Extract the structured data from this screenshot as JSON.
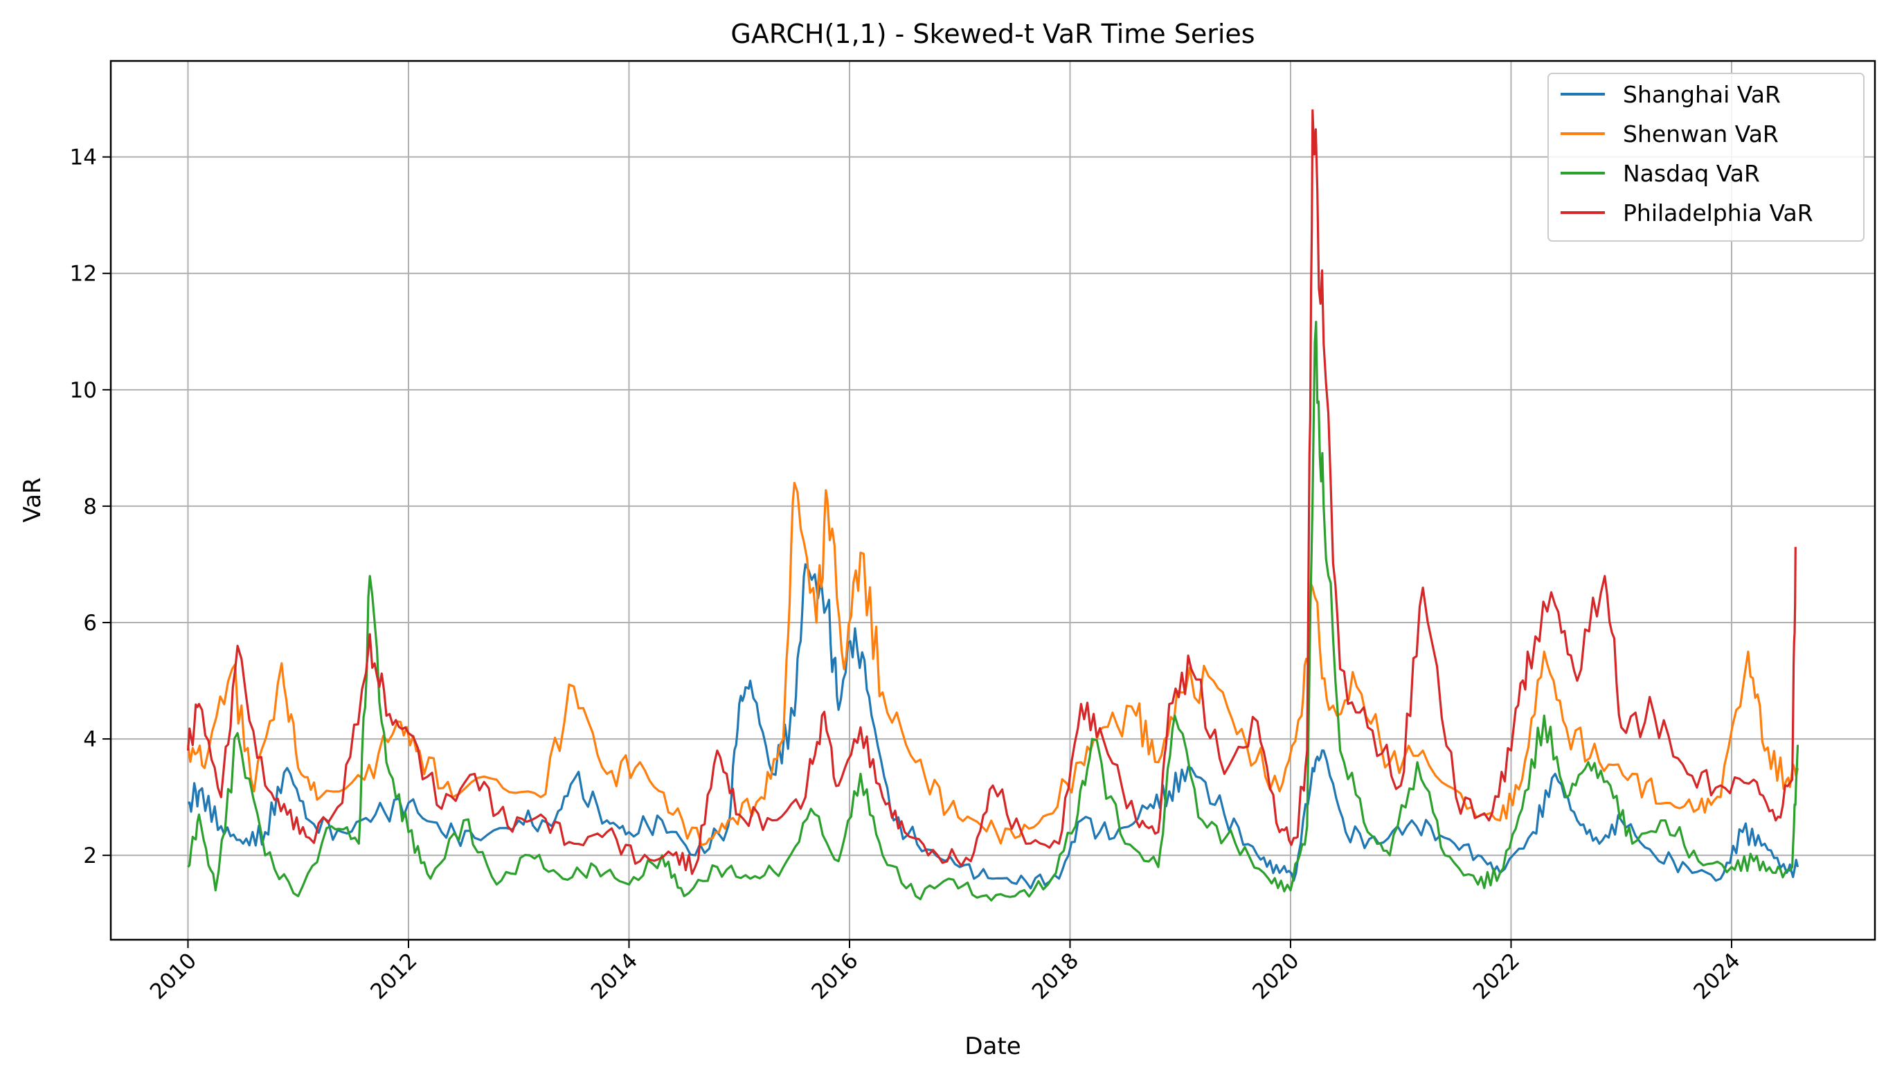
{
  "chart_data": {
    "type": "line",
    "title": "GARCH(1,1) - Skewed-t VaR Time Series",
    "xlabel": "Date",
    "ylabel": "VaR",
    "xlim": [
      2009.3,
      2025.3
    ],
    "ylim": [
      0.55,
      15.65
    ],
    "x_ticks": [
      2010,
      2012,
      2014,
      2016,
      2018,
      2020,
      2022,
      2024
    ],
    "y_ticks": [
      2,
      4,
      6,
      8,
      10,
      12,
      14
    ],
    "grid": true,
    "legend_position": "top-right",
    "series": [
      {
        "name": "Shanghai VaR",
        "color": "#1f77b4",
        "points": [
          [
            2010.0,
            2.9
          ],
          [
            2010.1,
            3.1
          ],
          [
            2010.3,
            2.5
          ],
          [
            2010.5,
            2.2
          ],
          [
            2010.7,
            2.4
          ],
          [
            2010.9,
            3.5
          ],
          [
            2011.1,
            2.6
          ],
          [
            2011.4,
            2.4
          ],
          [
            2011.7,
            2.7
          ],
          [
            2012.0,
            2.9
          ],
          [
            2012.3,
            2.4
          ],
          [
            2012.6,
            2.3
          ],
          [
            2013.0,
            2.6
          ],
          [
            2013.3,
            2.5
          ],
          [
            2013.5,
            3.3
          ],
          [
            2013.8,
            2.6
          ],
          [
            2014.0,
            2.4
          ],
          [
            2014.3,
            2.6
          ],
          [
            2014.6,
            2.0
          ],
          [
            2014.9,
            2.5
          ],
          [
            2015.0,
            4.6
          ],
          [
            2015.1,
            5.0
          ],
          [
            2015.3,
            3.4
          ],
          [
            2015.5,
            4.4
          ],
          [
            2015.6,
            7.0
          ],
          [
            2015.8,
            6.3
          ],
          [
            2015.9,
            4.5
          ],
          [
            2016.05,
            5.9
          ],
          [
            2016.2,
            4.4
          ],
          [
            2016.4,
            2.6
          ],
          [
            2016.7,
            2.1
          ],
          [
            2017.0,
            1.8
          ],
          [
            2017.3,
            1.6
          ],
          [
            2017.6,
            1.55
          ],
          [
            2017.9,
            1.6
          ],
          [
            2018.1,
            2.6
          ],
          [
            2018.4,
            2.3
          ],
          [
            2018.7,
            2.8
          ],
          [
            2018.9,
            3.1
          ],
          [
            2019.1,
            3.5
          ],
          [
            2019.4,
            2.7
          ],
          [
            2019.7,
            2.0
          ],
          [
            2019.9,
            1.7
          ],
          [
            2020.05,
            1.7
          ],
          [
            2020.2,
            3.5
          ],
          [
            2020.3,
            3.8
          ],
          [
            2020.5,
            2.4
          ],
          [
            2020.8,
            2.2
          ],
          [
            2021.1,
            2.6
          ],
          [
            2021.4,
            2.3
          ],
          [
            2021.7,
            2.0
          ],
          [
            2021.9,
            1.7
          ],
          [
            2022.2,
            2.4
          ],
          [
            2022.4,
            3.4
          ],
          [
            2022.6,
            2.6
          ],
          [
            2022.8,
            2.2
          ],
          [
            2023.0,
            2.6
          ],
          [
            2023.3,
            2.0
          ],
          [
            2023.6,
            1.8
          ],
          [
            2023.9,
            1.6
          ],
          [
            2024.1,
            2.4
          ],
          [
            2024.3,
            2.2
          ],
          [
            2024.5,
            1.7
          ],
          [
            2024.6,
            1.8
          ]
        ]
      },
      {
        "name": "Shenwan VaR",
        "color": "#ff7f0e",
        "points": [
          [
            2010.0,
            3.9
          ],
          [
            2010.15,
            3.5
          ],
          [
            2010.4,
            5.2
          ],
          [
            2010.6,
            3.1
          ],
          [
            2010.85,
            5.3
          ],
          [
            2011.0,
            3.5
          ],
          [
            2011.2,
            3.0
          ],
          [
            2011.6,
            3.3
          ],
          [
            2011.9,
            4.3
          ],
          [
            2012.1,
            3.8
          ],
          [
            2012.4,
            3.0
          ],
          [
            2012.8,
            3.3
          ],
          [
            2013.2,
            3.0
          ],
          [
            2013.5,
            4.9
          ],
          [
            2013.8,
            3.4
          ],
          [
            2014.1,
            3.6
          ],
          [
            2014.4,
            2.7
          ],
          [
            2014.7,
            2.2
          ],
          [
            2014.9,
            2.6
          ],
          [
            2015.2,
            3.0
          ],
          [
            2015.4,
            4.0
          ],
          [
            2015.5,
            8.4
          ],
          [
            2015.7,
            6.0
          ],
          [
            2015.8,
            8.1
          ],
          [
            2015.95,
            5.2
          ],
          [
            2016.1,
            7.2
          ],
          [
            2016.3,
            4.8
          ],
          [
            2016.6,
            3.6
          ],
          [
            2016.9,
            2.8
          ],
          [
            2017.2,
            2.5
          ],
          [
            2017.5,
            2.3
          ],
          [
            2017.8,
            2.7
          ],
          [
            2018.1,
            3.6
          ],
          [
            2018.3,
            4.2
          ],
          [
            2018.6,
            4.4
          ],
          [
            2018.8,
            3.6
          ],
          [
            2019.0,
            4.8
          ],
          [
            2019.3,
            5.0
          ],
          [
            2019.6,
            3.9
          ],
          [
            2019.9,
            3.1
          ],
          [
            2020.1,
            4.4
          ],
          [
            2020.2,
            6.6
          ],
          [
            2020.35,
            4.5
          ],
          [
            2020.6,
            4.9
          ],
          [
            2020.9,
            3.6
          ],
          [
            2021.2,
            3.8
          ],
          [
            2021.6,
            2.8
          ],
          [
            2021.9,
            2.6
          ],
          [
            2022.1,
            3.3
          ],
          [
            2022.3,
            5.5
          ],
          [
            2022.5,
            4.2
          ],
          [
            2022.8,
            3.6
          ],
          [
            2023.1,
            3.4
          ],
          [
            2023.4,
            2.9
          ],
          [
            2023.7,
            2.8
          ],
          [
            2023.9,
            3.0
          ],
          [
            2024.15,
            5.5
          ],
          [
            2024.3,
            3.8
          ],
          [
            2024.5,
            3.3
          ],
          [
            2024.6,
            3.5
          ]
        ]
      },
      {
        "name": "Nasdaq VaR",
        "color": "#2ca02c",
        "points": [
          [
            2010.0,
            1.8
          ],
          [
            2010.1,
            2.7
          ],
          [
            2010.25,
            1.4
          ],
          [
            2010.45,
            4.1
          ],
          [
            2010.7,
            2.0
          ],
          [
            2011.0,
            1.3
          ],
          [
            2011.3,
            2.5
          ],
          [
            2011.55,
            2.2
          ],
          [
            2011.65,
            6.8
          ],
          [
            2011.8,
            3.6
          ],
          [
            2012.0,
            2.4
          ],
          [
            2012.2,
            1.6
          ],
          [
            2012.5,
            2.6
          ],
          [
            2012.8,
            1.5
          ],
          [
            2013.1,
            2.0
          ],
          [
            2013.4,
            1.6
          ],
          [
            2013.7,
            1.8
          ],
          [
            2014.0,
            1.5
          ],
          [
            2014.3,
            2.0
          ],
          [
            2014.5,
            1.3
          ],
          [
            2014.8,
            1.8
          ],
          [
            2015.1,
            1.6
          ],
          [
            2015.4,
            1.8
          ],
          [
            2015.65,
            2.8
          ],
          [
            2015.9,
            1.9
          ],
          [
            2016.1,
            3.4
          ],
          [
            2016.3,
            2.0
          ],
          [
            2016.6,
            1.3
          ],
          [
            2016.9,
            1.6
          ],
          [
            2017.2,
            1.3
          ],
          [
            2017.5,
            1.3
          ],
          [
            2017.8,
            1.5
          ],
          [
            2018.05,
            2.5
          ],
          [
            2018.2,
            4.0
          ],
          [
            2018.5,
            2.2
          ],
          [
            2018.8,
            1.8
          ],
          [
            2018.95,
            4.4
          ],
          [
            2019.2,
            2.6
          ],
          [
            2019.5,
            2.2
          ],
          [
            2019.8,
            1.6
          ],
          [
            2020.0,
            1.4
          ],
          [
            2020.15,
            2.5
          ],
          [
            2020.22,
            10.8
          ],
          [
            2020.3,
            8.0
          ],
          [
            2020.45,
            3.8
          ],
          [
            2020.7,
            2.4
          ],
          [
            2020.9,
            2.0
          ],
          [
            2021.15,
            3.6
          ],
          [
            2021.4,
            2.0
          ],
          [
            2021.7,
            1.5
          ],
          [
            2021.9,
            1.7
          ],
          [
            2022.1,
            2.8
          ],
          [
            2022.3,
            4.4
          ],
          [
            2022.5,
            3.0
          ],
          [
            2022.7,
            3.6
          ],
          [
            2022.9,
            3.2
          ],
          [
            2023.1,
            2.2
          ],
          [
            2023.4,
            2.6
          ],
          [
            2023.7,
            1.9
          ],
          [
            2024.0,
            1.8
          ],
          [
            2024.2,
            1.9
          ],
          [
            2024.4,
            1.7
          ],
          [
            2024.55,
            1.8
          ],
          [
            2024.6,
            3.9
          ]
        ]
      },
      {
        "name": "Philadelphia VaR",
        "color": "#d62728",
        "points": [
          [
            2010.0,
            3.8
          ],
          [
            2010.1,
            4.6
          ],
          [
            2010.3,
            3.0
          ],
          [
            2010.45,
            5.6
          ],
          [
            2010.7,
            3.2
          ],
          [
            2010.9,
            2.7
          ],
          [
            2011.1,
            2.3
          ],
          [
            2011.4,
            2.9
          ],
          [
            2011.65,
            5.8
          ],
          [
            2011.8,
            4.4
          ],
          [
            2012.0,
            4.1
          ],
          [
            2012.3,
            2.8
          ],
          [
            2012.6,
            3.4
          ],
          [
            2012.9,
            2.5
          ],
          [
            2013.2,
            2.7
          ],
          [
            2013.5,
            2.2
          ],
          [
            2013.8,
            2.4
          ],
          [
            2014.1,
            1.9
          ],
          [
            2014.4,
            2.0
          ],
          [
            2014.6,
            1.8
          ],
          [
            2014.8,
            3.8
          ],
          [
            2015.0,
            2.7
          ],
          [
            2015.3,
            2.6
          ],
          [
            2015.6,
            3.0
          ],
          [
            2015.75,
            4.4
          ],
          [
            2015.9,
            3.2
          ],
          [
            2016.1,
            4.2
          ],
          [
            2016.3,
            3.0
          ],
          [
            2016.5,
            2.4
          ],
          [
            2016.8,
            2.0
          ],
          [
            2017.1,
            1.9
          ],
          [
            2017.3,
            3.2
          ],
          [
            2017.6,
            2.2
          ],
          [
            2017.9,
            2.2
          ],
          [
            2018.1,
            4.6
          ],
          [
            2018.3,
            4.0
          ],
          [
            2018.6,
            2.6
          ],
          [
            2018.8,
            2.4
          ],
          [
            2018.9,
            4.6
          ],
          [
            2019.1,
            5.2
          ],
          [
            2019.4,
            3.4
          ],
          [
            2019.7,
            4.3
          ],
          [
            2019.9,
            2.4
          ],
          [
            2020.05,
            2.3
          ],
          [
            2020.15,
            3.8
          ],
          [
            2020.2,
            14.8
          ],
          [
            2020.3,
            10.8
          ],
          [
            2020.45,
            5.2
          ],
          [
            2020.7,
            4.2
          ],
          [
            2021.0,
            3.2
          ],
          [
            2021.2,
            6.6
          ],
          [
            2021.5,
            3.0
          ],
          [
            2021.8,
            2.6
          ],
          [
            2022.0,
            3.8
          ],
          [
            2022.15,
            5.5
          ],
          [
            2022.4,
            6.3
          ],
          [
            2022.6,
            5.0
          ],
          [
            2022.85,
            6.8
          ],
          [
            2023.0,
            4.2
          ],
          [
            2023.3,
            4.4
          ],
          [
            2023.6,
            3.4
          ],
          [
            2023.9,
            3.2
          ],
          [
            2024.2,
            3.3
          ],
          [
            2024.4,
            2.6
          ],
          [
            2024.55,
            3.3
          ],
          [
            2024.58,
            7.3
          ]
        ]
      }
    ]
  }
}
